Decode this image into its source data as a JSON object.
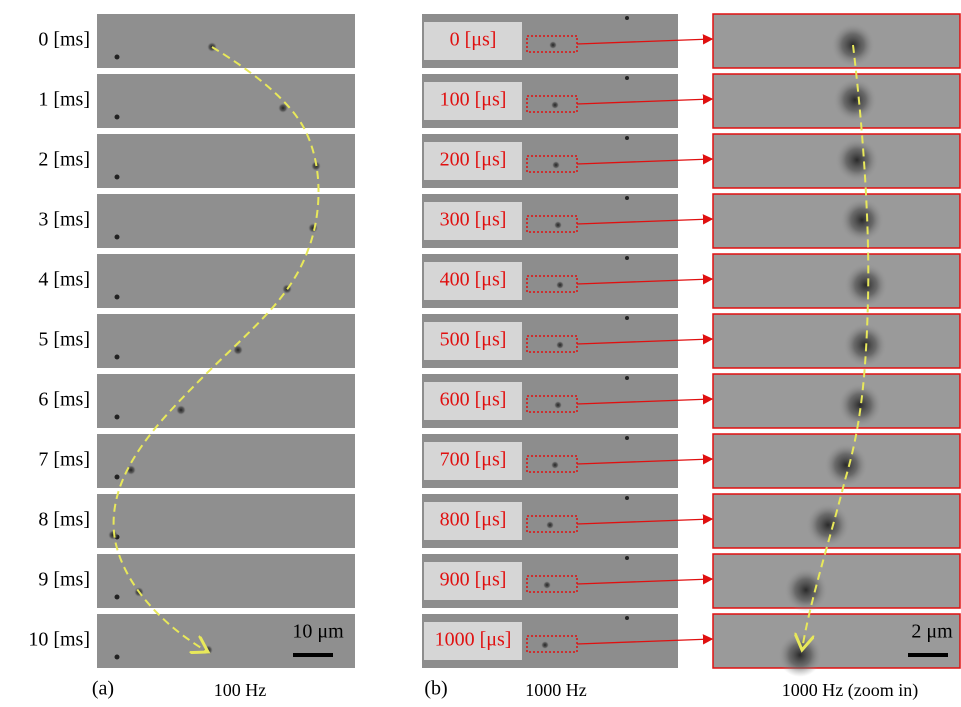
{
  "panel_a": {
    "label": "(a)",
    "caption": "100 Hz",
    "scale_bar": "10 μm",
    "frames": [
      "0 [ms]",
      "1 [ms]",
      "2 [ms]",
      "3 [ms]",
      "4 [ms]",
      "5 [ms]",
      "6 [ms]",
      "7 [ms]",
      "8 [ms]",
      "9 [ms]",
      "10 [ms]"
    ]
  },
  "panel_b": {
    "label": "(b)",
    "caption": "1000 Hz",
    "frames": [
      "0 [μs]",
      "100 [μs]",
      "200 [μs]",
      "300 [μs]",
      "400 [μs]",
      "500 [μs]",
      "600 [μs]",
      "700 [μs]",
      "800 [μs]",
      "900 [μs]",
      "1000 [μs]"
    ]
  },
  "panel_zoom": {
    "caption": "1000 Hz (zoom in)",
    "scale_bar": "2 μm"
  }
}
